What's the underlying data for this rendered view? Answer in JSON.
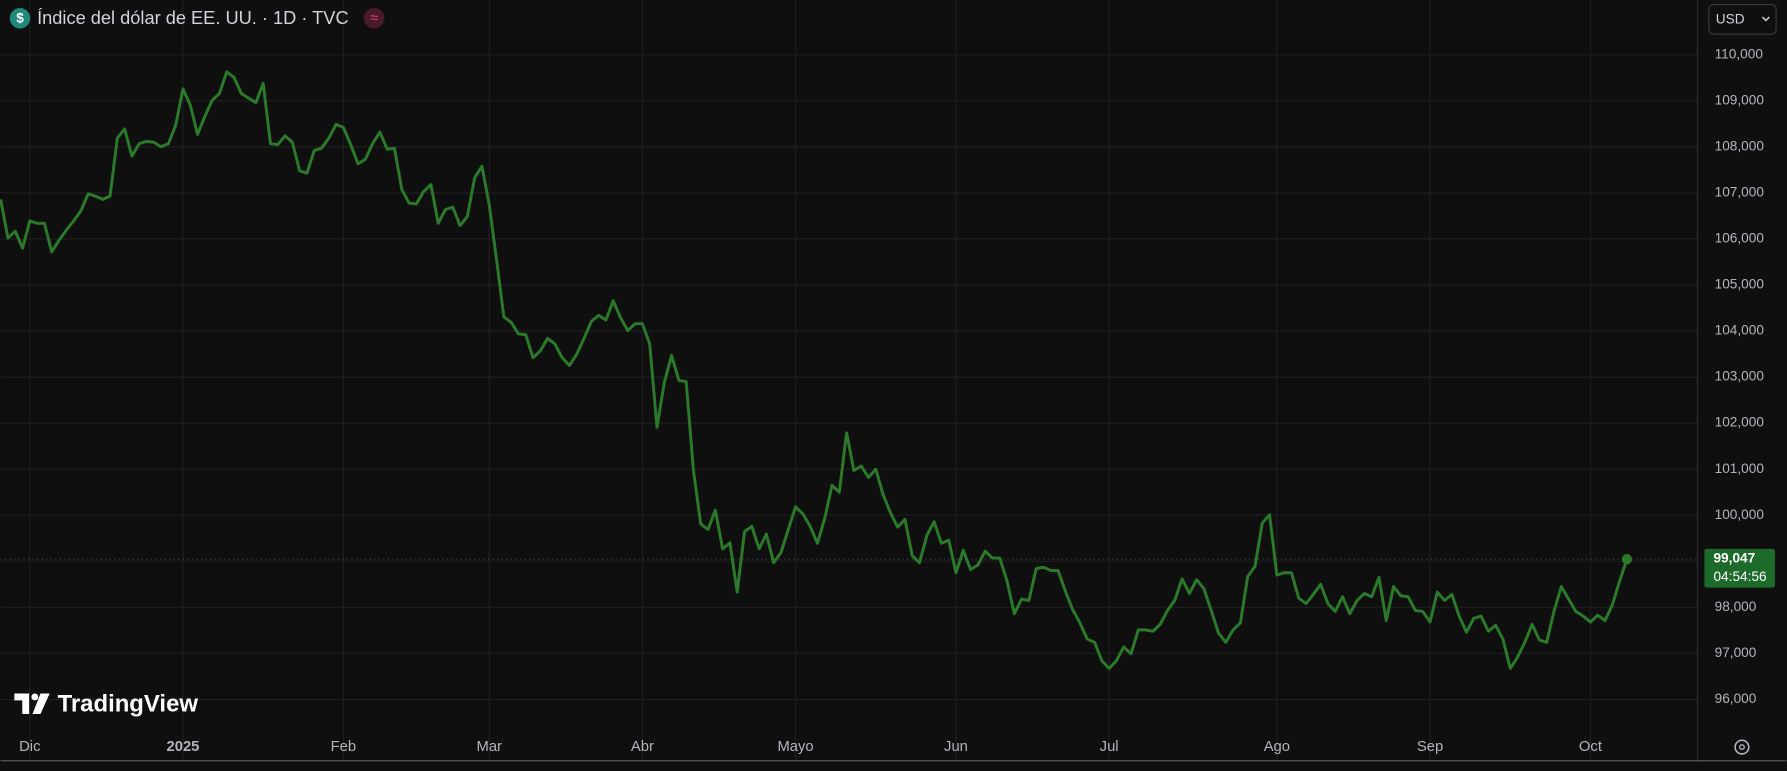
{
  "chart_data": {
    "type": "line",
    "title": "Índice del dólar de EE. UU. · 1D · TVC",
    "symbol_icon": "$",
    "status_icon": "≈",
    "currency": "USD",
    "watermark": "TradingView",
    "color": "#2a7a2a",
    "categories": [
      null,
      null,
      null,
      null,
      "Dic",
      null,
      null,
      null,
      null,
      null,
      null,
      null,
      null,
      null,
      null,
      null,
      null,
      null,
      null,
      null,
      null,
      null,
      null,
      null,
      null,
      "2025",
      null,
      null,
      null,
      null,
      null,
      null,
      null,
      null,
      null,
      null,
      null,
      null,
      null,
      null,
      null,
      null,
      null,
      null,
      null,
      null,
      null,
      "Feb",
      null,
      null,
      null,
      null,
      null,
      null,
      null,
      null,
      null,
      null,
      null,
      null,
      null,
      null,
      null,
      null,
      null,
      null,
      null,
      "Mar",
      null,
      null,
      null,
      null,
      null,
      null,
      null,
      null,
      null,
      null,
      null,
      null,
      null,
      null,
      null,
      null,
      null,
      null,
      null,
      null,
      "Abr",
      null,
      null,
      null,
      null,
      null,
      null,
      null,
      null,
      null,
      null,
      null,
      null,
      null,
      null,
      null,
      null,
      null,
      null,
      null,
      null,
      "Mayo",
      null,
      null,
      null,
      null,
      null,
      null,
      null,
      null,
      null,
      null,
      null,
      null,
      null,
      null,
      null,
      null,
      null,
      null,
      null,
      null,
      null,
      "Jun",
      null,
      null,
      null,
      null,
      null,
      null,
      null,
      null,
      null,
      null,
      null,
      null,
      null,
      null,
      null,
      null,
      null,
      null,
      null,
      null,
      "Jul",
      null,
      null,
      null,
      null,
      null,
      null,
      null,
      null,
      null,
      null,
      null,
      null,
      null,
      null,
      null,
      null,
      null,
      null,
      null,
      null,
      null,
      null,
      "Ago",
      null,
      null,
      null,
      null,
      null,
      null,
      null,
      null,
      null,
      null,
      null,
      null,
      null,
      null,
      null,
      null,
      null,
      null,
      null,
      null,
      "Sep",
      null,
      null,
      null,
      null,
      null,
      null,
      null,
      null,
      null,
      null,
      null,
      null,
      null,
      null,
      null,
      null,
      null,
      null,
      null,
      null,
      null,
      "Oct",
      null,
      null,
      null,
      null,
      null
    ],
    "values": [
      106.86,
      106.02,
      106.17,
      105.8,
      106.39,
      106.34,
      106.34,
      105.72,
      105.97,
      106.19,
      106.39,
      106.61,
      106.98,
      106.93,
      106.86,
      106.93,
      108.19,
      108.39,
      107.8,
      108.07,
      108.12,
      108.1,
      108.0,
      108.07,
      108.47,
      109.26,
      108.91,
      108.27,
      108.66,
      109.01,
      109.16,
      109.63,
      109.51,
      109.16,
      109.06,
      108.96,
      109.38,
      108.07,
      108.05,
      108.24,
      108.1,
      107.48,
      107.43,
      107.92,
      107.97,
      108.19,
      108.49,
      108.42,
      108.05,
      107.63,
      107.73,
      108.07,
      108.32,
      107.95,
      107.97,
      107.08,
      106.78,
      106.76,
      107.03,
      107.18,
      106.34,
      106.64,
      106.69,
      106.29,
      106.49,
      107.33,
      107.58,
      106.74,
      105.55,
      104.31,
      104.19,
      103.94,
      103.92,
      103.42,
      103.57,
      103.84,
      103.72,
      103.42,
      103.25,
      103.5,
      103.84,
      104.21,
      104.34,
      104.24,
      104.66,
      104.29,
      104.01,
      104.16,
      104.16,
      103.72,
      101.91,
      102.88,
      103.47,
      102.93,
      102.9,
      100.97,
      99.81,
      99.69,
      100.11,
      99.27,
      99.4,
      98.33,
      99.64,
      99.76,
      99.27,
      99.59,
      98.97,
      99.19,
      99.69,
      100.18,
      100.03,
      99.76,
      99.39,
      99.93,
      100.65,
      100.5,
      101.79,
      100.97,
      101.07,
      100.82,
      101.0,
      100.45,
      100.06,
      99.74,
      99.91,
      99.12,
      98.97,
      99.56,
      99.86,
      99.39,
      99.46,
      98.75,
      99.24,
      98.82,
      98.92,
      99.22,
      99.07,
      99.07,
      98.57,
      97.86,
      98.18,
      98.15,
      98.84,
      98.87,
      98.8,
      98.8,
      98.35,
      97.95,
      97.66,
      97.31,
      97.24,
      96.84,
      96.67,
      96.84,
      97.14,
      96.99,
      97.51,
      97.51,
      97.48,
      97.63,
      97.93,
      98.15,
      98.62,
      98.3,
      98.6,
      98.4,
      97.93,
      97.44,
      97.24,
      97.51,
      97.66,
      98.67,
      98.89,
      99.83,
      100.01,
      98.7,
      98.75,
      98.75,
      98.2,
      98.08,
      98.28,
      98.5,
      98.08,
      97.91,
      98.23,
      97.86,
      98.15,
      98.3,
      98.23,
      98.65,
      97.71,
      98.45,
      98.25,
      98.23,
      97.93,
      97.91,
      97.68,
      98.33,
      98.15,
      98.28,
      97.81,
      97.46,
      97.76,
      97.81,
      97.48,
      97.61,
      97.31,
      96.67,
      96.92,
      97.24,
      97.63,
      97.29,
      97.24,
      97.91,
      98.45,
      98.18,
      97.91,
      97.81,
      97.68,
      97.83,
      97.71,
      98.05,
      98.57,
      99.047
    ],
    "ylim": [
      95.36,
      111.19
    ],
    "yticks": [
      {
        "value": 96,
        "label": "96,000"
      },
      {
        "value": 97,
        "label": "97,000"
      },
      {
        "value": 98,
        "label": "98,000"
      },
      {
        "value": 99,
        "label": "99,000"
      },
      {
        "value": 100,
        "label": "100,000"
      },
      {
        "value": 101,
        "label": "101,000"
      },
      {
        "value": 102,
        "label": "102,000"
      },
      {
        "value": 103,
        "label": "103,000"
      },
      {
        "value": 104,
        "label": "104,000"
      },
      {
        "value": 105,
        "label": "105,000"
      },
      {
        "value": 106,
        "label": "106,000"
      },
      {
        "value": 107,
        "label": "107,000"
      },
      {
        "value": 108,
        "label": "108,000"
      },
      {
        "value": 109,
        "label": "109,000"
      },
      {
        "value": 110,
        "label": "110,000"
      }
    ],
    "grid": true,
    "last_price": {
      "value": 99.047,
      "label": "99,047"
    },
    "countdown": "04:54:56"
  }
}
